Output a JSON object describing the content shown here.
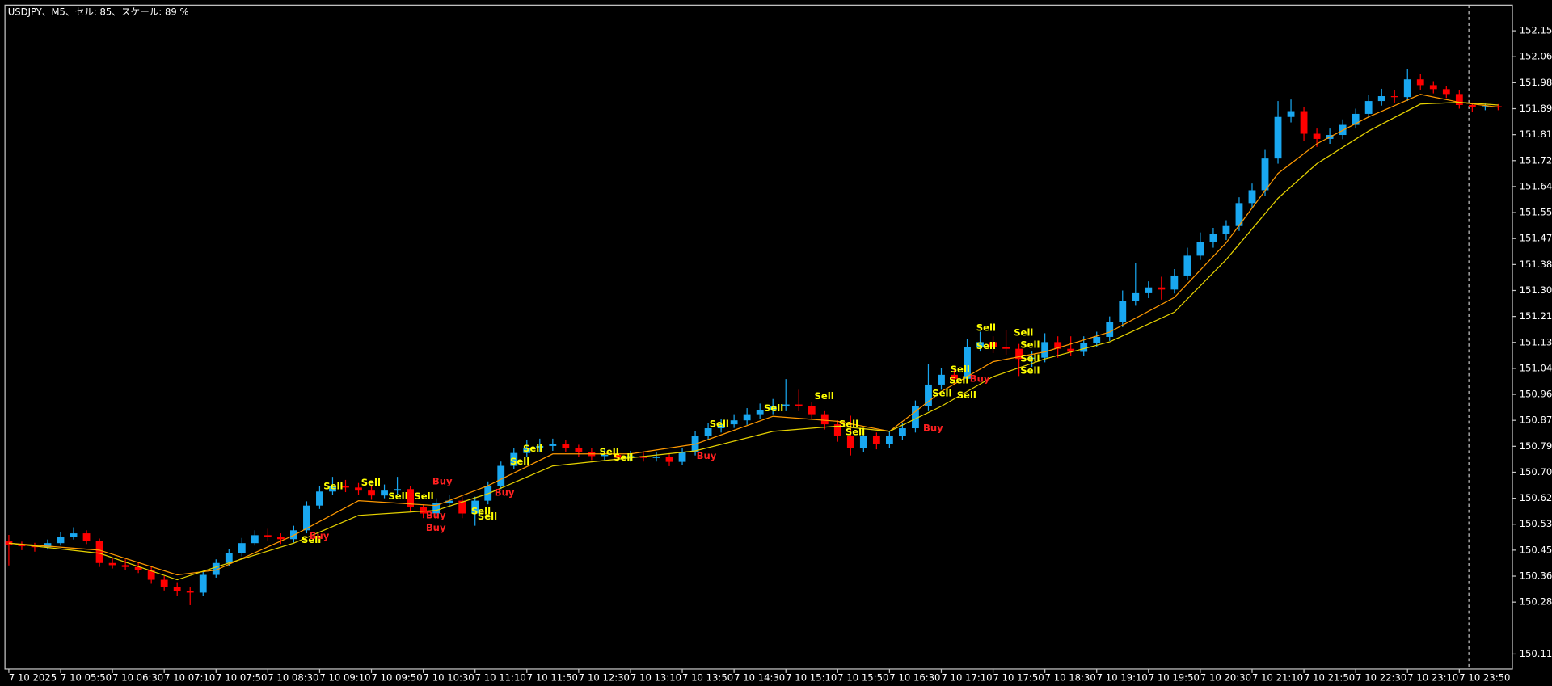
{
  "chart_data": {
    "type": "candlestick",
    "title": "USDJPY、M5、セル: 85、スケール: 89 %",
    "up_color": "#19a7f0",
    "down_color": "#ff0000",
    "xlim": [
      -0.3,
      116.1
    ],
    "ylim": [
      150.061,
      152.234
    ],
    "yticks": [
      {
        "value": 152.15,
        "label": "152.150"
      },
      {
        "value": 152.065,
        "label": "152.065"
      },
      {
        "value": 151.98,
        "label": "151.980"
      },
      {
        "value": 151.895,
        "label": "151.895"
      },
      {
        "value": 151.81,
        "label": "151.810"
      },
      {
        "value": 151.725,
        "label": "151.725"
      },
      {
        "value": 151.64,
        "label": "151.640"
      },
      {
        "value": 151.555,
        "label": "151.555"
      },
      {
        "value": 151.47,
        "label": "151.470"
      },
      {
        "value": 151.385,
        "label": "151.385"
      },
      {
        "value": 151.3,
        "label": "151.300"
      },
      {
        "value": 151.215,
        "label": "151.215"
      },
      {
        "value": 151.13,
        "label": "151.130"
      },
      {
        "value": 151.045,
        "label": "151.045"
      },
      {
        "value": 150.96,
        "label": "150.960"
      },
      {
        "value": 150.875,
        "label": "150.875"
      },
      {
        "value": 150.79,
        "label": "150.790"
      },
      {
        "value": 150.705,
        "label": "150.705"
      },
      {
        "value": 150.62,
        "label": "150.620"
      },
      {
        "value": 150.535,
        "label": "150.535"
      },
      {
        "value": 150.45,
        "label": "150.450"
      },
      {
        "value": 150.365,
        "label": "150.365"
      },
      {
        "value": 150.28,
        "label": "150.280"
      },
      {
        "value": 150.11,
        "label": "150.110"
      }
    ],
    "xticks": [
      {
        "value": 0,
        "label": "7 10 2025"
      },
      {
        "value": 4,
        "label": "7 10 05:50"
      },
      {
        "value": 8,
        "label": "7 10 06:30"
      },
      {
        "value": 12,
        "label": "7 10 07:10"
      },
      {
        "value": 16,
        "label": "7 10 07:50"
      },
      {
        "value": 20,
        "label": "7 10 08:30"
      },
      {
        "value": 24,
        "label": "7 10 09:10"
      },
      {
        "value": 28,
        "label": "7 10 09:50"
      },
      {
        "value": 32,
        "label": "7 10 10:30"
      },
      {
        "value": 36,
        "label": "7 10 11:10"
      },
      {
        "value": 40,
        "label": "7 10 11:50"
      },
      {
        "value": 44,
        "label": "7 10 12:30"
      },
      {
        "value": 48,
        "label": "7 10 13:10"
      },
      {
        "value": 52,
        "label": "7 10 13:50"
      },
      {
        "value": 56,
        "label": "7 10 14:30"
      },
      {
        "value": 60,
        "label": "7 10 15:10"
      },
      {
        "value": 64,
        "label": "7 10 15:50"
      },
      {
        "value": 68,
        "label": "7 10 16:30"
      },
      {
        "value": 72,
        "label": "7 10 17:10"
      },
      {
        "value": 76,
        "label": "7 10 17:50"
      },
      {
        "value": 80,
        "label": "7 10 18:30"
      },
      {
        "value": 84,
        "label": "7 10 19:10"
      },
      {
        "value": 88,
        "label": "7 10 19:50"
      },
      {
        "value": 92,
        "label": "7 10 20:30"
      },
      {
        "value": 96,
        "label": "7 10 21:10"
      },
      {
        "value": 100,
        "label": "7 10 21:50"
      },
      {
        "value": 104,
        "label": "7 10 22:30"
      },
      {
        "value": 108,
        "label": "7 10 23:10"
      },
      {
        "value": 112,
        "label": "7 10 23:50"
      }
    ],
    "candles": [
      [
        150.48,
        150.5,
        150.4,
        150.466
      ],
      [
        150.466,
        150.478,
        150.45,
        150.463
      ],
      [
        150.463,
        150.474,
        150.445,
        150.46
      ],
      [
        150.46,
        150.485,
        150.452,
        150.473
      ],
      [
        150.473,
        150.51,
        150.465,
        150.492
      ],
      [
        150.492,
        150.525,
        150.485,
        150.505
      ],
      [
        150.505,
        150.515,
        150.47,
        150.479
      ],
      [
        150.479,
        150.488,
        150.395,
        150.408
      ],
      [
        150.408,
        150.425,
        150.39,
        150.401
      ],
      [
        150.401,
        150.42,
        150.385,
        150.395
      ],
      [
        150.395,
        150.41,
        150.375,
        150.385
      ],
      [
        150.385,
        150.395,
        150.34,
        150.353
      ],
      [
        150.353,
        150.365,
        150.318,
        150.33
      ],
      [
        150.33,
        150.345,
        150.3,
        150.317
      ],
      [
        150.317,
        150.33,
        150.27,
        150.311
      ],
      [
        150.311,
        150.38,
        150.3,
        150.369
      ],
      [
        150.369,
        150.42,
        150.36,
        150.408
      ],
      [
        150.408,
        150.455,
        150.398,
        150.44
      ],
      [
        150.44,
        150.49,
        150.43,
        150.473
      ],
      [
        150.473,
        150.515,
        150.465,
        150.499
      ],
      [
        150.499,
        150.52,
        150.48,
        150.492
      ],
      [
        150.492,
        150.505,
        150.47,
        150.486
      ],
      [
        150.486,
        150.53,
        150.475,
        150.515
      ],
      [
        150.515,
        150.61,
        150.505,
        150.596
      ],
      [
        150.596,
        150.66,
        150.585,
        150.642
      ],
      [
        150.642,
        150.69,
        150.63,
        150.661
      ],
      [
        150.661,
        150.68,
        150.64,
        150.655
      ],
      [
        150.655,
        150.67,
        150.63,
        150.645
      ],
      [
        150.645,
        150.66,
        150.615,
        150.629
      ],
      [
        150.629,
        150.665,
        150.62,
        150.645
      ],
      [
        150.645,
        150.69,
        150.63,
        150.65
      ],
      [
        150.65,
        150.66,
        150.575,
        150.59
      ],
      [
        150.59,
        150.6,
        150.555,
        150.57
      ],
      [
        150.57,
        150.62,
        150.56,
        150.603
      ],
      [
        150.603,
        150.63,
        150.59,
        150.612
      ],
      [
        150.612,
        150.625,
        150.555,
        150.57
      ],
      [
        150.57,
        150.625,
        150.53,
        150.612
      ],
      [
        150.612,
        150.675,
        150.6,
        150.661
      ],
      [
        150.661,
        150.74,
        150.65,
        150.726
      ],
      [
        150.726,
        150.785,
        150.715,
        150.768
      ],
      [
        150.768,
        150.81,
        150.755,
        150.784
      ],
      [
        150.784,
        150.815,
        150.77,
        150.791
      ],
      [
        150.791,
        150.815,
        150.775,
        150.797
      ],
      [
        150.797,
        150.81,
        150.77,
        150.784
      ],
      [
        150.784,
        150.795,
        150.755,
        150.771
      ],
      [
        150.771,
        150.785,
        150.745,
        150.758
      ],
      [
        150.758,
        150.78,
        150.745,
        150.762
      ],
      [
        150.762,
        150.775,
        150.74,
        150.752
      ],
      [
        150.752,
        150.775,
        150.74,
        150.758
      ],
      [
        150.758,
        150.77,
        150.74,
        150.752
      ],
      [
        150.752,
        150.77,
        150.74,
        150.755
      ],
      [
        150.755,
        150.765,
        150.725,
        150.739
      ],
      [
        150.739,
        150.785,
        150.73,
        150.771
      ],
      [
        150.771,
        150.84,
        150.76,
        150.823
      ],
      [
        150.823,
        150.865,
        150.81,
        150.849
      ],
      [
        150.849,
        150.88,
        150.835,
        150.862
      ],
      [
        150.862,
        150.895,
        150.85,
        150.875
      ],
      [
        150.875,
        150.915,
        150.86,
        150.895
      ],
      [
        150.895,
        150.93,
        150.88,
        150.908
      ],
      [
        150.908,
        150.945,
        150.895,
        150.921
      ],
      [
        150.921,
        151.01,
        150.905,
        150.927
      ],
      [
        150.927,
        150.975,
        150.905,
        150.921
      ],
      [
        150.921,
        150.935,
        150.88,
        150.895
      ],
      [
        150.895,
        150.905,
        150.845,
        150.862
      ],
      [
        150.862,
        150.875,
        150.805,
        150.823
      ],
      [
        150.823,
        150.89,
        150.76,
        150.784
      ],
      [
        150.784,
        150.84,
        150.77,
        150.823
      ],
      [
        150.823,
        150.835,
        150.78,
        150.797
      ],
      [
        150.797,
        150.84,
        150.785,
        150.823
      ],
      [
        150.823,
        150.865,
        150.81,
        150.849
      ],
      [
        150.849,
        150.94,
        150.835,
        150.921
      ],
      [
        150.921,
        151.06,
        150.905,
        150.992
      ],
      [
        150.992,
        151.045,
        150.975,
        151.024
      ],
      [
        151.024,
        151.04,
        150.99,
        151.011
      ],
      [
        151.011,
        151.14,
        151.0,
        151.115
      ],
      [
        151.115,
        151.165,
        151.1,
        151.131
      ],
      [
        151.131,
        151.15,
        151.095,
        151.115
      ],
      [
        151.115,
        151.17,
        151.09,
        151.109
      ],
      [
        151.109,
        151.125,
        151.02,
        151.076
      ],
      [
        151.076,
        151.1,
        151.05,
        151.08
      ],
      [
        151.08,
        151.16,
        151.065,
        151.131
      ],
      [
        151.131,
        151.15,
        151.08,
        151.109
      ],
      [
        151.109,
        151.15,
        151.085,
        151.099
      ],
      [
        151.099,
        151.15,
        151.085,
        151.128
      ],
      [
        151.128,
        151.165,
        151.115,
        151.148
      ],
      [
        151.148,
        151.215,
        151.135,
        151.196
      ],
      [
        151.196,
        151.3,
        151.18,
        151.265
      ],
      [
        151.265,
        151.39,
        151.25,
        151.291
      ],
      [
        151.291,
        151.33,
        151.275,
        151.31
      ],
      [
        151.31,
        151.345,
        151.27,
        151.303
      ],
      [
        151.303,
        151.37,
        151.29,
        151.349
      ],
      [
        151.349,
        151.44,
        151.335,
        151.414
      ],
      [
        151.414,
        151.49,
        151.4,
        151.459
      ],
      [
        151.459,
        151.505,
        151.44,
        151.485
      ],
      [
        151.485,
        151.53,
        151.465,
        151.511
      ],
      [
        151.511,
        151.605,
        151.495,
        151.586
      ],
      [
        151.586,
        151.65,
        151.57,
        151.628
      ],
      [
        151.628,
        151.76,
        151.61,
        151.732
      ],
      [
        151.732,
        151.92,
        151.715,
        151.868
      ],
      [
        151.868,
        151.925,
        151.85,
        151.887
      ],
      [
        151.887,
        151.9,
        151.79,
        151.813
      ],
      [
        151.813,
        151.83,
        151.77,
        151.796
      ],
      [
        151.796,
        151.83,
        151.78,
        151.809
      ],
      [
        151.809,
        151.86,
        151.795,
        151.842
      ],
      [
        151.842,
        151.895,
        151.83,
        151.878
      ],
      [
        151.878,
        151.94,
        151.865,
        151.92
      ],
      [
        151.92,
        151.96,
        151.905,
        151.936
      ],
      [
        151.936,
        151.955,
        151.915,
        151.933
      ],
      [
        151.933,
        152.025,
        151.92,
        151.991
      ],
      [
        151.991,
        152.01,
        151.955,
        151.972
      ],
      [
        151.972,
        151.985,
        151.945,
        151.959
      ],
      [
        151.959,
        151.97,
        151.93,
        151.943
      ],
      [
        151.943,
        151.955,
        151.895,
        151.907
      ],
      [
        151.907,
        151.915,
        151.885,
        151.9
      ],
      [
        151.9,
        151.912,
        151.89,
        151.903
      ],
      [
        151.903,
        151.91,
        151.89,
        151.9
      ]
    ],
    "lines": [
      {
        "color": "#ff9900",
        "x": [
          0,
          7,
          13,
          16,
          22,
          27,
          33,
          37,
          42,
          48,
          53,
          59,
          64,
          68,
          72,
          76,
          80,
          85,
          90,
          94,
          98,
          101,
          105,
          109,
          112,
          115
        ],
        "values": [
          150.473,
          150.45,
          150.369,
          150.385,
          150.499,
          150.612,
          150.596,
          150.661,
          150.765,
          150.765,
          150.797,
          150.888,
          150.872,
          150.839,
          150.969,
          151.067,
          151.099,
          151.164,
          151.277,
          151.456,
          151.683,
          151.78,
          151.868,
          151.942,
          151.916,
          151.9
        ]
      },
      {
        "color": "#e6d200",
        "x": [
          0,
          7,
          13,
          16,
          22,
          27,
          33,
          37,
          42,
          48,
          53,
          59,
          64,
          68,
          72,
          76,
          80,
          85,
          90,
          94,
          98,
          101,
          105,
          109,
          112,
          115
        ],
        "values": [
          150.473,
          150.44,
          150.353,
          150.395,
          150.473,
          150.564,
          150.58,
          150.635,
          150.726,
          150.752,
          150.775,
          150.839,
          150.856,
          150.839,
          150.921,
          151.018,
          151.076,
          151.132,
          151.229,
          151.401,
          151.602,
          151.715,
          151.822,
          151.91,
          151.916,
          151.907
        ]
      }
    ],
    "annotations": [
      {
        "text": "Sell",
        "x": 22.6,
        "price": 150.483,
        "color": "#ffff00"
      },
      {
        "text": "Buy",
        "x": 23.2,
        "price": 150.496,
        "color": "#ff2020"
      },
      {
        "text": "Sell",
        "x": 24.3,
        "price": 150.658,
        "color": "#ffff00"
      },
      {
        "text": "Sell",
        "x": 27.2,
        "price": 150.671,
        "color": "#ffff00"
      },
      {
        "text": "Sell",
        "x": 29.3,
        "price": 150.625,
        "color": "#ffff00"
      },
      {
        "text": "Sell",
        "x": 31.3,
        "price": 150.625,
        "color": "#ffff00"
      },
      {
        "text": "Buy",
        "x": 32.7,
        "price": 150.674,
        "color": "#ff2020"
      },
      {
        "text": "Buy",
        "x": 32.2,
        "price": 150.564,
        "color": "#ff2020"
      },
      {
        "text": "Buy",
        "x": 32.2,
        "price": 150.522,
        "color": "#ff2020"
      },
      {
        "text": "Sell",
        "x": 35.7,
        "price": 150.577,
        "color": "#ffff00"
      },
      {
        "text": "Sell",
        "x": 36.2,
        "price": 150.56,
        "color": "#ffff00"
      },
      {
        "text": "Buy",
        "x": 37.5,
        "price": 150.638,
        "color": "#ff2020"
      },
      {
        "text": "Sell",
        "x": 38.7,
        "price": 150.739,
        "color": "#ffff00"
      },
      {
        "text": "Sell",
        "x": 39.7,
        "price": 150.781,
        "color": "#ffff00"
      },
      {
        "text": "Sell",
        "x": 45.6,
        "price": 150.771,
        "color": "#ffff00"
      },
      {
        "text": "Sell",
        "x": 46.7,
        "price": 150.752,
        "color": "#ffff00"
      },
      {
        "text": "Buy",
        "x": 53.1,
        "price": 150.758,
        "color": "#ff2020"
      },
      {
        "text": "Sell",
        "x": 54.1,
        "price": 150.862,
        "color": "#ffff00"
      },
      {
        "text": "Sell",
        "x": 58.3,
        "price": 150.914,
        "color": "#ffff00"
      },
      {
        "text": "Sell",
        "x": 62.2,
        "price": 150.953,
        "color": "#ffff00"
      },
      {
        "text": "Sell",
        "x": 64.1,
        "price": 150.862,
        "color": "#ffff00"
      },
      {
        "text": "Sell",
        "x": 64.6,
        "price": 150.836,
        "color": "#ffff00"
      },
      {
        "text": "Buy",
        "x": 70.6,
        "price": 150.849,
        "color": "#ff2020"
      },
      {
        "text": "Sell",
        "x": 71.3,
        "price": 150.963,
        "color": "#ffff00"
      },
      {
        "text": "Sell",
        "x": 72.6,
        "price": 151.005,
        "color": "#ffff00"
      },
      {
        "text": "Sell",
        "x": 72.7,
        "price": 151.041,
        "color": "#ffff00"
      },
      {
        "text": "Sell",
        "x": 73.2,
        "price": 150.956,
        "color": "#ffff00"
      },
      {
        "text": "Buy",
        "x": 74.2,
        "price": 151.011,
        "color": "#ff2020"
      },
      {
        "text": "Sell",
        "x": 74.7,
        "price": 151.177,
        "color": "#ffff00"
      },
      {
        "text": "Sell",
        "x": 74.7,
        "price": 151.118,
        "color": "#ffff00"
      },
      {
        "text": "Sell",
        "x": 77.6,
        "price": 151.161,
        "color": "#ffff00"
      },
      {
        "text": "Sell",
        "x": 78.1,
        "price": 151.122,
        "color": "#ffff00"
      },
      {
        "text": "Sell",
        "x": 78.1,
        "price": 151.076,
        "color": "#ffff00"
      },
      {
        "text": "Sell",
        "x": 78.1,
        "price": 151.037,
        "color": "#ffff00"
      }
    ]
  }
}
